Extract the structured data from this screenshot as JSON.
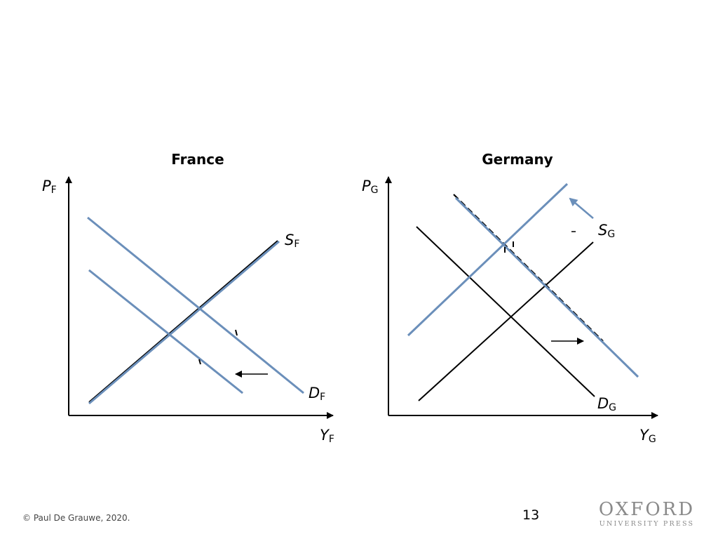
{
  "colors": {
    "ink": "#000000",
    "blue": "#6b8fba",
    "gray": "#8a8a8a"
  },
  "france": {
    "title": "France",
    "y_axis": {
      "main": "P",
      "sub": "F"
    },
    "x_axis": {
      "main": "Y",
      "sub": "F"
    },
    "supply": {
      "main": "S",
      "sub": "F"
    },
    "demand": {
      "main": "D",
      "sub": "F"
    },
    "shift": "left"
  },
  "germany": {
    "title": "Germany",
    "y_axis": {
      "main": "P",
      "sub": "G"
    },
    "x_axis": {
      "main": "Y",
      "sub": "G"
    },
    "supply": {
      "main": "S",
      "sub": "G"
    },
    "demand": {
      "main": "D",
      "sub": "G"
    },
    "shift": "right"
  },
  "footer": {
    "copyright": "© Paul De Grauwe, 2020.",
    "page_number": "13",
    "logo_top": "OXFORD",
    "logo_bottom": "UNIVERSITY PRESS"
  }
}
